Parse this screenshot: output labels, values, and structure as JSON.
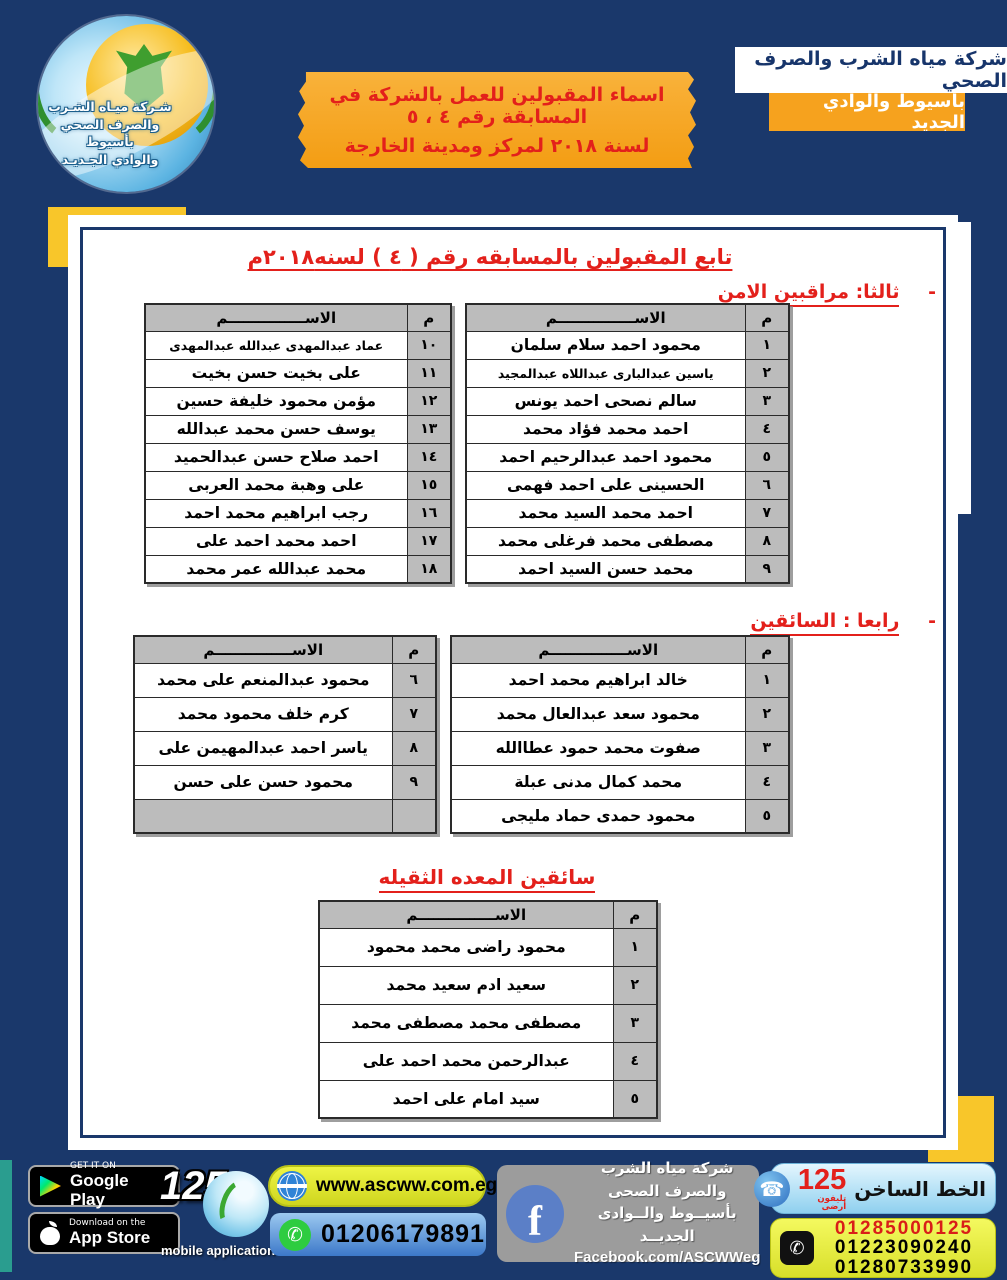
{
  "header": {
    "logo": {
      "line1": "شـركة ميـاه الشـرب",
      "line2": "والصرف الصحي بأسيوط",
      "line3": "والوادي الجـديـد"
    },
    "banner": {
      "line1": "اسماء المقبولين للعمل بالشركة في المسابقة رقم ٤ ، ٥",
      "line2": "لسنة ٢٠١٨ لمركز ومدينة الخارجة"
    },
    "company_name": "شركة مياه الشرب والصرف الصحي",
    "company_region": "بأسيوط والوادي الجديد"
  },
  "document": {
    "title": "تابع  المقبولين بالمسابقه رقم ( ٤ ) لسنه٢٠١٨م",
    "section_security": {
      "dash": "-",
      "title": "ثالثا:  مراقبين الامن"
    },
    "section_drivers": {
      "dash": "-",
      "title": "رابعا : السائقين"
    },
    "section_heavy": {
      "title": "سائقين المعده الثقيله"
    },
    "columns": {
      "no": "م",
      "name": "الاســـــــــــــــم"
    }
  },
  "tables": {
    "security_right": [
      {
        "no": "١",
        "name": "محمود احمد سلام سلمان"
      },
      {
        "no": "٢",
        "name": "ياسين عبدالبارى عبداللاه عبدالمجيد",
        "cls": "tight"
      },
      {
        "no": "٣",
        "name": "سالم نصحى احمد يونس"
      },
      {
        "no": "٤",
        "name": "احمد محمد فؤاد محمد"
      },
      {
        "no": "٥",
        "name": "محمود احمد عبدالرحيم احمد"
      },
      {
        "no": "٦",
        "name": "الحسينى على احمد فهمى"
      },
      {
        "no": "٧",
        "name": "احمد محمد السيد محمد"
      },
      {
        "no": "٨",
        "name": "مصطفى محمد فرغلى محمد"
      },
      {
        "no": "٩",
        "name": "محمد حسن السيد احمد"
      }
    ],
    "security_left": [
      {
        "no": "١٠",
        "name": "عماد عبدالمهدى عبدالله عبدالمهدى",
        "cls": "tight"
      },
      {
        "no": "١١",
        "name": "على بخيت حسن بخيت"
      },
      {
        "no": "١٢",
        "name": "مؤمن محمود خليفة حسين"
      },
      {
        "no": "١٣",
        "name": "يوسف حسن محمد عبدالله"
      },
      {
        "no": "١٤",
        "name": "احمد صلاح حسن عبدالحميد"
      },
      {
        "no": "١٥",
        "name": "على وهبة محمد العربى"
      },
      {
        "no": "١٦",
        "name": "رجب ابراهيم محمد احمد"
      },
      {
        "no": "١٧",
        "name": "احمد محمد احمد على"
      },
      {
        "no": "١٨",
        "name": "محمد عبدالله عمر محمد"
      }
    ],
    "drivers_right": [
      {
        "no": "١",
        "name": "خالد ابراهيم محمد احمد"
      },
      {
        "no": "٢",
        "name": "محمود سعد عبدالعال محمد"
      },
      {
        "no": "٣",
        "name": "صفوت محمد حمود عطاالله"
      },
      {
        "no": "٤",
        "name": "محمد كمال مدنى عبلة"
      },
      {
        "no": "٥",
        "name": "محمود حمدى حماد مليجى"
      }
    ],
    "drivers_left": [
      {
        "no": "٦",
        "name": "محمود عبدالمنعم على محمد"
      },
      {
        "no": "٧",
        "name": "كرم خلف محمود محمد"
      },
      {
        "no": "٨",
        "name": "ياسر احمد عبدالمهيمن على"
      },
      {
        "no": "٩",
        "name": "محمود حسن على حسن"
      },
      {
        "no": "",
        "name": "",
        "cls": "blank"
      }
    ],
    "heavy": [
      {
        "no": "١",
        "name": "محمود راضى محمد محمود"
      },
      {
        "no": "٢",
        "name": "سعيد ادم سعيد محمد"
      },
      {
        "no": "٣",
        "name": "مصطفى محمد مصطفى محمد"
      },
      {
        "no": "٤",
        "name": "عبدالرحمن محمد احمد على"
      },
      {
        "no": "٥",
        "name": "سيد امام على احمد"
      }
    ]
  },
  "footer": {
    "google_play": {
      "tag": "GET IT ON",
      "store": "Google Play"
    },
    "app_store": {
      "tag": "Download on the",
      "store": "App Store"
    },
    "app_number": "125",
    "app_label": "mobile application",
    "website": "www.ascww.com.eg",
    "whatsapp_number": "01206179891",
    "facebook": {
      "line1": "شركة مياه الشرب والصرف الصحى",
      "line2": "بأسيــوط والــوادى الجديــد",
      "page": "Facebook.com/ASCWWeg"
    },
    "hotline": {
      "label": "الخط الساخن",
      "number": "125",
      "sub": "تليفون أرضى"
    },
    "phones": [
      "01285000125",
      "01223090240",
      "01280733990"
    ]
  },
  "colors": {
    "navy": "#1a386b",
    "orange": "#f6a21e",
    "red": "#e3201b",
    "table_grey": "#bcbcbc",
    "accent_yellow": "#f8c62a"
  }
}
